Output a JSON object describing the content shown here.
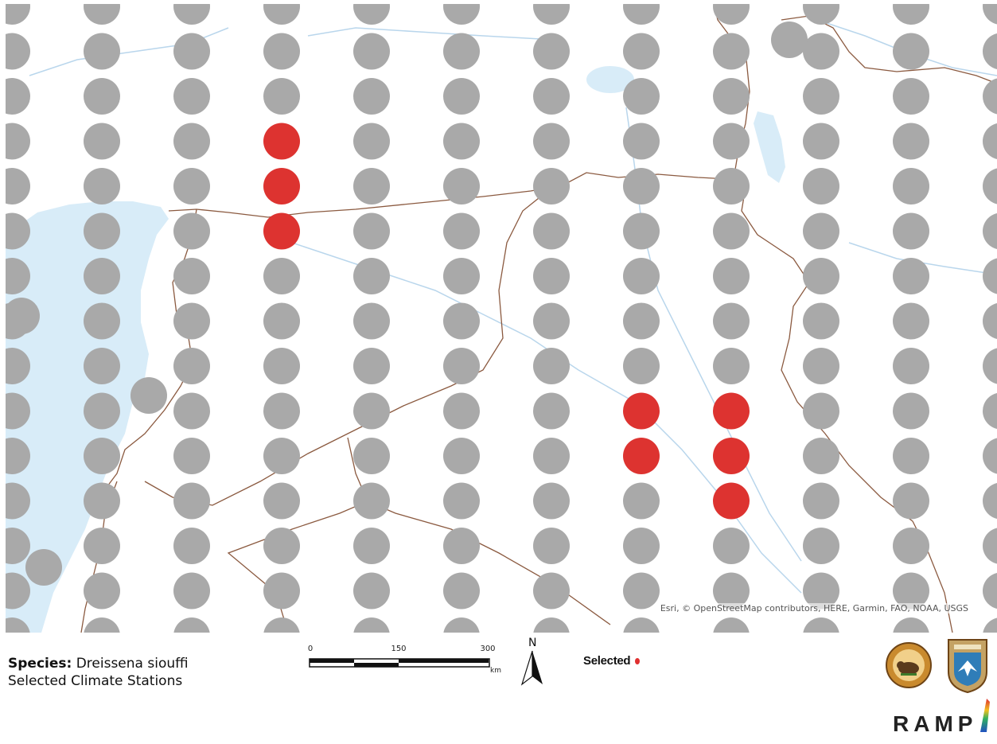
{
  "map": {
    "attribution": "Esri, © OpenStreetMap contributors, HERE, Garmin, FAO, NOAA, USGS",
    "colors": {
      "station": "#a9a9a9",
      "selected": "#dd3330",
      "water": "#d8ecf8",
      "border": "#8b5a40",
      "river": "#b9d6ec"
    },
    "selected_stations": [
      [
        3,
        3
      ],
      [
        3,
        4
      ],
      [
        3,
        5
      ],
      [
        7,
        9
      ],
      [
        7,
        10
      ],
      [
        8,
        9
      ],
      [
        8,
        10
      ],
      [
        8,
        11
      ]
    ]
  },
  "legend": {
    "species_label": "Species:",
    "species_name": "Dreissena siouffi",
    "subtitle": "Selected Climate Stations",
    "key_label": "Selected"
  },
  "scalebar": {
    "ticks": [
      "0",
      "150",
      "300"
    ],
    "unit": "km"
  },
  "north_arrow": {
    "label": "N"
  },
  "logos": {
    "interior_seal": "us-department-of-the-interior-seal",
    "fws_seal": "us-fish-and-wildlife-service-seal",
    "ramp": "RAMP"
  }
}
